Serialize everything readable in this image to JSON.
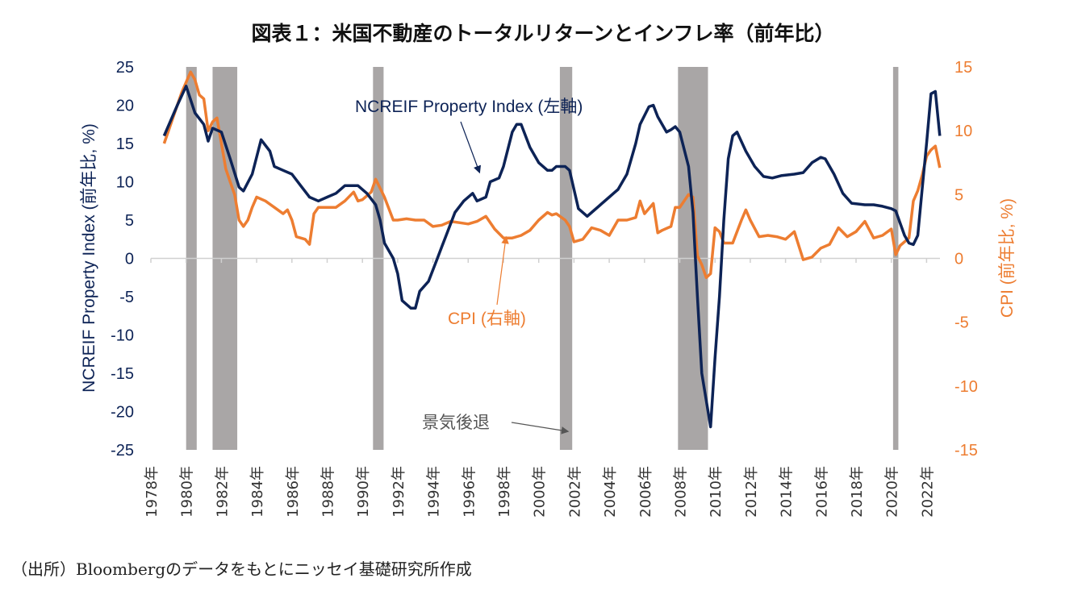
{
  "title": "図表１：米国不動産のトータルリターンとインフレ率（前年比）",
  "footer": "（出所）Bloombergのデータをもとにニッセイ基礎研究所作成",
  "chart_data": {
    "type": "line",
    "title": "図表１：米国不動産のトータルリターンとインフレ率（前年比）",
    "ylabel_left": "NCREIF Property Index (前年比, %)",
    "ylabel_right": "CPI (前年比, %)",
    "ylim_left": [
      -25,
      25
    ],
    "ylim_right": [
      -15,
      15
    ],
    "yticks_left": [
      25,
      20,
      15,
      10,
      5,
      0,
      -5,
      -10,
      -15,
      -20,
      -25
    ],
    "yticks_right": [
      15,
      10,
      5,
      0,
      -5,
      -10,
      -15
    ],
    "xlim": [
      1978,
      2023.5
    ],
    "xticks": [
      "1978年",
      "1980年",
      "1982年",
      "1984年",
      "1986年",
      "1988年",
      "1990年",
      "1992年",
      "1994年",
      "1996年",
      "1998年",
      "2000年",
      "2002年",
      "2004年",
      "2006年",
      "2008年",
      "2010年",
      "2012年",
      "2014年",
      "2016年",
      "2018年",
      "2020年",
      "2022年"
    ],
    "grid": false,
    "colors": {
      "ncreif": "#0d2356",
      "cpi": "#ed7d31",
      "recession": "#a9a6a6"
    },
    "recessions": [
      [
        1980.0,
        1980.6
      ],
      [
        1981.5,
        1982.9
      ],
      [
        1990.6,
        1991.2
      ],
      [
        2001.2,
        2001.9
      ],
      [
        2007.9,
        2009.6
      ],
      [
        2020.1,
        2020.4
      ]
    ],
    "annotations": {
      "ncreif": "NCREIF Property Index (左軸)",
      "cpi": "CPI (右軸)",
      "recession": "景気後退"
    },
    "series": [
      {
        "name": "NCREIF Property Index (左軸)",
        "axis": "left",
        "x": [
          1978.75,
          1979.5,
          1980.0,
          1980.5,
          1981.0,
          1981.25,
          1981.5,
          1982.0,
          1982.5,
          1983.0,
          1983.25,
          1983.75,
          1984.25,
          1984.75,
          1985.0,
          1985.5,
          1986.0,
          1986.5,
          1987.0,
          1987.5,
          1988.0,
          1988.5,
          1989.0,
          1989.75,
          1990.25,
          1990.75,
          1991.0,
          1991.25,
          1991.75,
          1992.0,
          1992.25,
          1992.75,
          1993.0,
          1993.25,
          1993.75,
          1994.25,
          1994.5,
          1994.75,
          1995.25,
          1995.75,
          1996.25,
          1996.5,
          1997.0,
          1997.25,
          1997.75,
          1998.0,
          1998.5,
          1998.75,
          1999.0,
          1999.5,
          2000.0,
          2000.5,
          2000.75,
          2001.0,
          2001.5,
          2001.75,
          2002.0,
          2002.25,
          2002.75,
          2003.0,
          2003.5,
          2004.0,
          2004.5,
          2005.0,
          2005.5,
          2005.75,
          2006.25,
          2006.5,
          2006.75,
          2007.25,
          2007.5,
          2007.75,
          2008.0,
          2008.5,
          2008.75,
          2009.0,
          2009.25,
          2009.75,
          2010.0,
          2010.25,
          2010.5,
          2010.75,
          2011.0,
          2011.25,
          2011.75,
          2012.25,
          2012.75,
          2013.25,
          2013.75,
          2014.5,
          2015.0,
          2015.5,
          2016.0,
          2016.25,
          2016.75,
          2017.25,
          2017.75,
          2018.5,
          2019.0,
          2019.5,
          2020.0,
          2020.25,
          2020.75,
          2021.0,
          2021.25,
          2021.5,
          2021.75,
          2022.0,
          2022.25,
          2022.5,
          2022.75
        ],
        "values": [
          16,
          20,
          22.5,
          19,
          17.5,
          15.3,
          17,
          16.5,
          13,
          9.3,
          8.8,
          11,
          15.5,
          14,
          12,
          11.5,
          11,
          9.5,
          8,
          7.5,
          8,
          8.5,
          9.5,
          9.5,
          8.5,
          7,
          5,
          2,
          0,
          -2,
          -5.5,
          -6.5,
          -6.5,
          -4.3,
          -3,
          0,
          1.5,
          3,
          6,
          7.5,
          8.5,
          7.5,
          8,
          10,
          10.5,
          12,
          16.5,
          17.5,
          17.5,
          14.5,
          12.5,
          11.5,
          11.5,
          12,
          12,
          11.5,
          9,
          6.5,
          5.5,
          6,
          7,
          8,
          9,
          11,
          15,
          17.5,
          19.8,
          20,
          18.5,
          16.5,
          16.8,
          17.2,
          16.5,
          12,
          6,
          -5,
          -15,
          -22,
          -13,
          -5,
          5,
          13,
          16,
          16.5,
          14,
          12,
          10.7,
          10.5,
          10.8,
          11,
          11.2,
          12.5,
          13.2,
          13,
          11,
          8.5,
          7.2,
          7,
          7,
          6.8,
          6.5,
          6.2,
          3,
          2,
          1.8,
          3,
          9,
          15,
          21.5,
          21.8,
          16
        ]
      },
      {
        "name": "CPI (右軸)",
        "axis": "right",
        "x": [
          1978.75,
          1979.25,
          1979.75,
          1980.25,
          1980.5,
          1980.75,
          1981.0,
          1981.25,
          1981.5,
          1981.75,
          1982.0,
          1982.25,
          1982.5,
          1982.75,
          1983.0,
          1983.25,
          1983.5,
          1983.75,
          1984.0,
          1984.5,
          1985.0,
          1985.5,
          1985.75,
          1986.0,
          1986.25,
          1986.75,
          1987.0,
          1987.25,
          1987.5,
          1988.0,
          1988.5,
          1989.0,
          1989.5,
          1989.75,
          1990.0,
          1990.5,
          1990.75,
          1991.0,
          1991.25,
          1991.75,
          1992.0,
          1992.5,
          1993.0,
          1993.5,
          1994.0,
          1994.5,
          1995.0,
          1995.5,
          1996.0,
          1996.5,
          1997.0,
          1997.5,
          1998.0,
          1998.5,
          1999.0,
          1999.5,
          2000.0,
          2000.5,
          2000.75,
          2001.0,
          2001.5,
          2001.75,
          2002.0,
          2002.5,
          2003.0,
          2003.5,
          2004.0,
          2004.5,
          2005.0,
          2005.5,
          2005.75,
          2006.0,
          2006.5,
          2006.75,
          2007.0,
          2007.5,
          2007.75,
          2008.0,
          2008.5,
          2008.75,
          2009.0,
          2009.25,
          2009.5,
          2009.75,
          2010.0,
          2010.25,
          2010.5,
          2011.0,
          2011.5,
          2011.75,
          2012.0,
          2012.5,
          2013.0,
          2013.5,
          2014.0,
          2014.5,
          2015.0,
          2015.5,
          2016.0,
          2016.5,
          2017.0,
          2017.5,
          2018.0,
          2018.5,
          2019.0,
          2019.5,
          2020.0,
          2020.25,
          2020.5,
          2020.75,
          2021.0,
          2021.25,
          2021.5,
          2021.75,
          2022.0,
          2022.25,
          2022.5,
          2022.75
        ],
        "values": [
          9,
          11,
          13,
          14.6,
          14,
          12.8,
          12.5,
          10,
          10.7,
          11,
          9,
          7,
          6,
          5,
          3,
          2.5,
          3,
          4,
          4.8,
          4.5,
          4,
          3.5,
          3.8,
          3,
          1.7,
          1.5,
          1.1,
          3.5,
          4,
          4,
          4,
          4.5,
          5.2,
          4.5,
          4.6,
          5.2,
          6.2,
          5.5,
          4.8,
          3,
          3,
          3.1,
          3,
          3,
          2.5,
          2.6,
          2.9,
          2.8,
          2.7,
          2.9,
          3.3,
          2.3,
          1.6,
          1.6,
          1.8,
          2.2,
          3,
          3.6,
          3.4,
          3.5,
          3,
          2.5,
          1.3,
          1.5,
          2.4,
          2.2,
          1.8,
          3,
          3,
          3.2,
          4.5,
          3.5,
          4.3,
          2,
          2.2,
          2.5,
          4,
          4,
          5,
          4.8,
          0.2,
          -0.5,
          -1.5,
          -1.2,
          2.4,
          2.1,
          1.2,
          1.2,
          3,
          3.8,
          3,
          1.7,
          1.8,
          1.7,
          1.5,
          2.1,
          -0.1,
          0.1,
          0.8,
          1.1,
          2.4,
          1.7,
          2.1,
          2.9,
          1.6,
          1.8,
          2.3,
          0.3,
          1,
          1.3,
          1.6,
          4.5,
          5.3,
          6.5,
          8,
          8.5,
          8.8,
          7.1
        ]
      }
    ]
  }
}
